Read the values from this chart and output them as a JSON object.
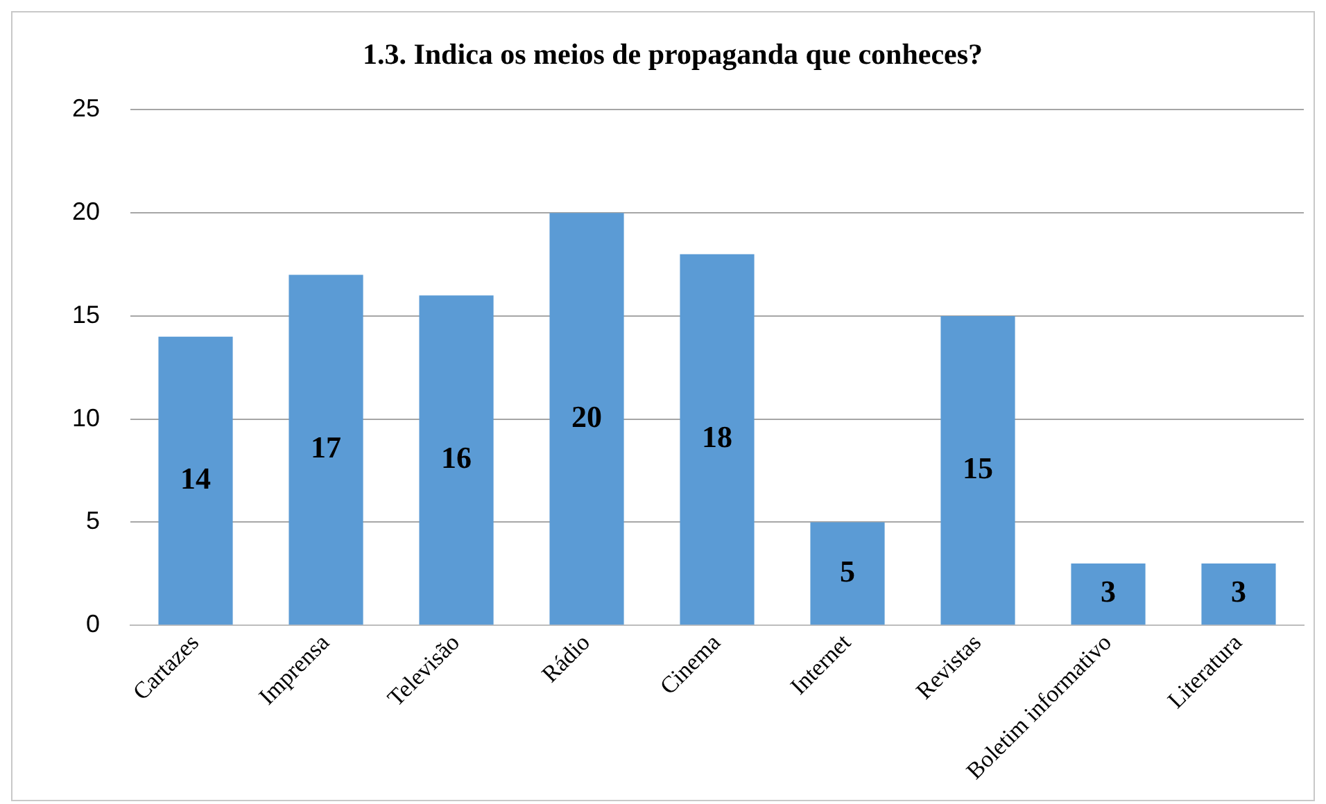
{
  "chart_data": {
    "type": "bar",
    "title": "1.3. Indica os meios de propaganda que conheces?",
    "categories": [
      "Cartazes",
      "Imprensa",
      "Televisão",
      "Rádio",
      "Cinema",
      "Internet",
      "Revistas",
      "Boletim informativo",
      "Literatura"
    ],
    "values": [
      14,
      17,
      16,
      20,
      18,
      5,
      15,
      3,
      3
    ],
    "color": "#5b9bd5",
    "ylim": [
      0,
      25
    ],
    "yticks": [
      0,
      5,
      10,
      15,
      20,
      25
    ],
    "grid": "y",
    "data_labels": true,
    "legend": false
  }
}
